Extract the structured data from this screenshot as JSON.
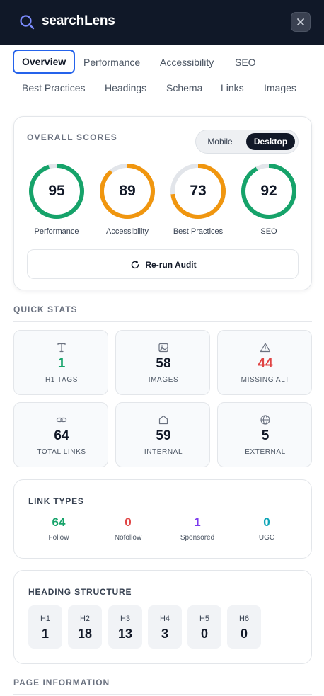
{
  "app": {
    "title": "searchLens",
    "close_icon": "close-icon",
    "brand_icon": "search-icon"
  },
  "tabs": [
    {
      "label": "Overview",
      "active": true
    },
    {
      "label": "Performance"
    },
    {
      "label": "Accessibility"
    },
    {
      "label": "SEO"
    },
    {
      "label": "Best Practices"
    },
    {
      "label": "Headings"
    },
    {
      "label": "Schema"
    },
    {
      "label": "Links"
    },
    {
      "label": "Images"
    }
  ],
  "overall": {
    "title": "OVERALL SCORES",
    "toggle": {
      "mobile": "Mobile",
      "desktop": "Desktop",
      "selected": "Desktop"
    },
    "scores": [
      {
        "value": 95,
        "label": "Performance",
        "color": "#16a36a"
      },
      {
        "value": 89,
        "label": "Accessibility",
        "color": "#f0960f"
      },
      {
        "value": 73,
        "label": "Best Practices",
        "color": "#f0960f"
      },
      {
        "value": 92,
        "label": "SEO",
        "color": "#16a36a"
      }
    ],
    "track_color": "#e2e5ea",
    "rerun_label": "Re-run Audit",
    "rerun_icon": "refresh-icon"
  },
  "quick_stats": {
    "title": "QUICK STATS",
    "items": [
      {
        "value": "1",
        "label": "H1 TAGS",
        "icon": "text-icon",
        "color": "#16a36a"
      },
      {
        "value": "58",
        "label": "IMAGES",
        "icon": "image-icon",
        "color": "#111827"
      },
      {
        "value": "44",
        "label": "MISSING ALT",
        "icon": "warning-icon",
        "color": "#e04444"
      },
      {
        "value": "64",
        "label": "TOTAL LINKS",
        "icon": "link-icon",
        "color": "#111827"
      },
      {
        "value": "59",
        "label": "INTERNAL",
        "icon": "home-icon",
        "color": "#111827"
      },
      {
        "value": "5",
        "label": "EXTERNAL",
        "icon": "globe-icon",
        "color": "#111827"
      }
    ]
  },
  "link_types": {
    "title": "LINK TYPES",
    "items": [
      {
        "value": "64",
        "label": "Follow",
        "color": "#16a36a"
      },
      {
        "value": "0",
        "label": "Nofollow",
        "color": "#e04444"
      },
      {
        "value": "1",
        "label": "Sponsored",
        "color": "#7c3aed"
      },
      {
        "value": "0",
        "label": "UGC",
        "color": "#0ea5b7"
      }
    ]
  },
  "heading_structure": {
    "title": "HEADING STRUCTURE",
    "items": [
      {
        "level": "H1",
        "count": "1"
      },
      {
        "level": "H2",
        "count": "18"
      },
      {
        "level": "H3",
        "count": "13"
      },
      {
        "level": "H4",
        "count": "3"
      },
      {
        "level": "H5",
        "count": "0"
      },
      {
        "level": "H6",
        "count": "0"
      }
    ]
  },
  "page_information": {
    "title": "PAGE INFORMATION"
  }
}
